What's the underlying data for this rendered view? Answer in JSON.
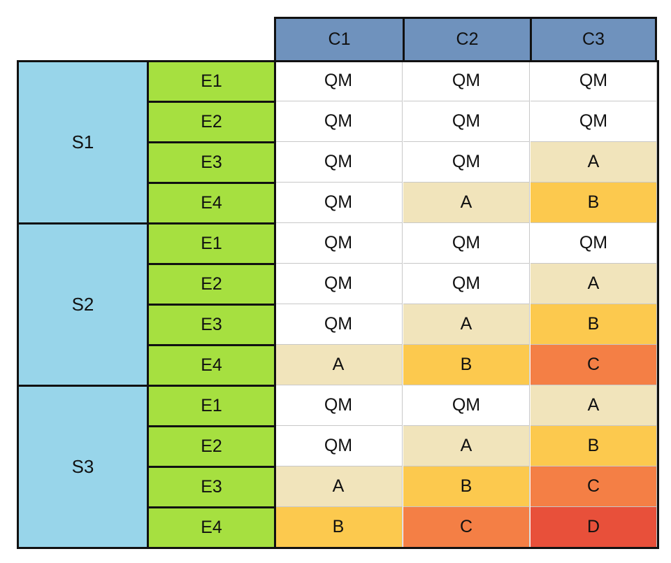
{
  "columns": [
    "C1",
    "C2",
    "C3"
  ],
  "groups": [
    {
      "label": "S1",
      "rows": [
        {
          "label": "E1",
          "cells": [
            "QM",
            "QM",
            "QM"
          ]
        },
        {
          "label": "E2",
          "cells": [
            "QM",
            "QM",
            "QM"
          ]
        },
        {
          "label": "E3",
          "cells": [
            "QM",
            "QM",
            "A"
          ]
        },
        {
          "label": "E4",
          "cells": [
            "QM",
            "A",
            "B"
          ]
        }
      ]
    },
    {
      "label": "S2",
      "rows": [
        {
          "label": "E1",
          "cells": [
            "QM",
            "QM",
            "QM"
          ]
        },
        {
          "label": "E2",
          "cells": [
            "QM",
            "QM",
            "A"
          ]
        },
        {
          "label": "E3",
          "cells": [
            "QM",
            "A",
            "B"
          ]
        },
        {
          "label": "E4",
          "cells": [
            "A",
            "B",
            "C"
          ]
        }
      ]
    },
    {
      "label": "S3",
      "rows": [
        {
          "label": "E1",
          "cells": [
            "QM",
            "QM",
            "A"
          ]
        },
        {
          "label": "E2",
          "cells": [
            "QM",
            "A",
            "B"
          ]
        },
        {
          "label": "E3",
          "cells": [
            "A",
            "B",
            "C"
          ]
        },
        {
          "label": "E4",
          "cells": [
            "B",
            "C",
            "D"
          ]
        }
      ]
    }
  ],
  "colors": {
    "column_header": "#6f92bd",
    "group_label": "#98d5ea",
    "row_label": "#a6e040",
    "level": {
      "QM": "#ffffff",
      "A": "#f1e4bb",
      "B": "#fcc94e",
      "C": "#f47f45",
      "D": "#e8503a"
    }
  }
}
